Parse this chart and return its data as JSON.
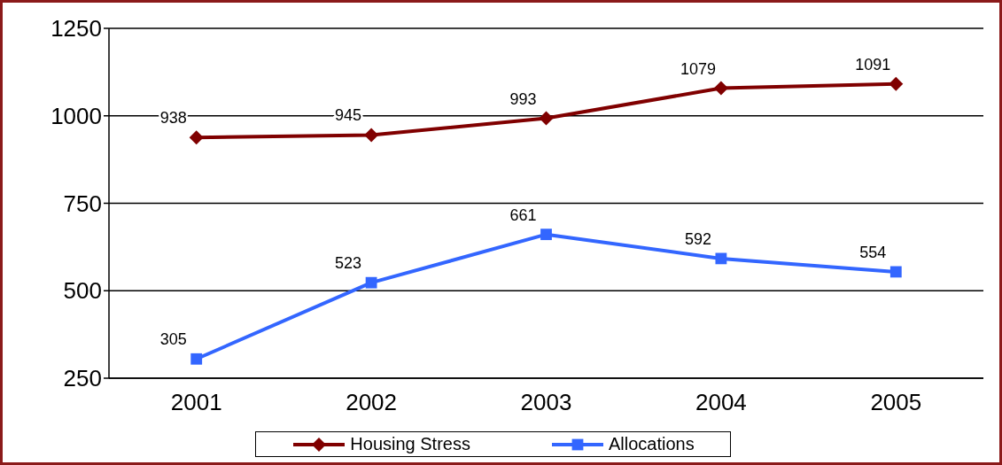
{
  "chart_data": {
    "type": "line",
    "categories": [
      "2001",
      "2002",
      "2003",
      "2004",
      "2005"
    ],
    "series": [
      {
        "name": "Housing Stress",
        "color": "#800000",
        "marker": "diamond",
        "values": [
          938,
          945,
          993,
          1079,
          1091
        ]
      },
      {
        "name": "Allocations",
        "color": "#3366ff",
        "marker": "square",
        "values": [
          305,
          523,
          661,
          592,
          554
        ]
      }
    ],
    "ylim": [
      250,
      1250
    ],
    "yticks": [
      250,
      500,
      750,
      1000,
      1250
    ],
    "grid": "y",
    "legend": "bottom",
    "data_labels": true,
    "line_style": "solid"
  }
}
